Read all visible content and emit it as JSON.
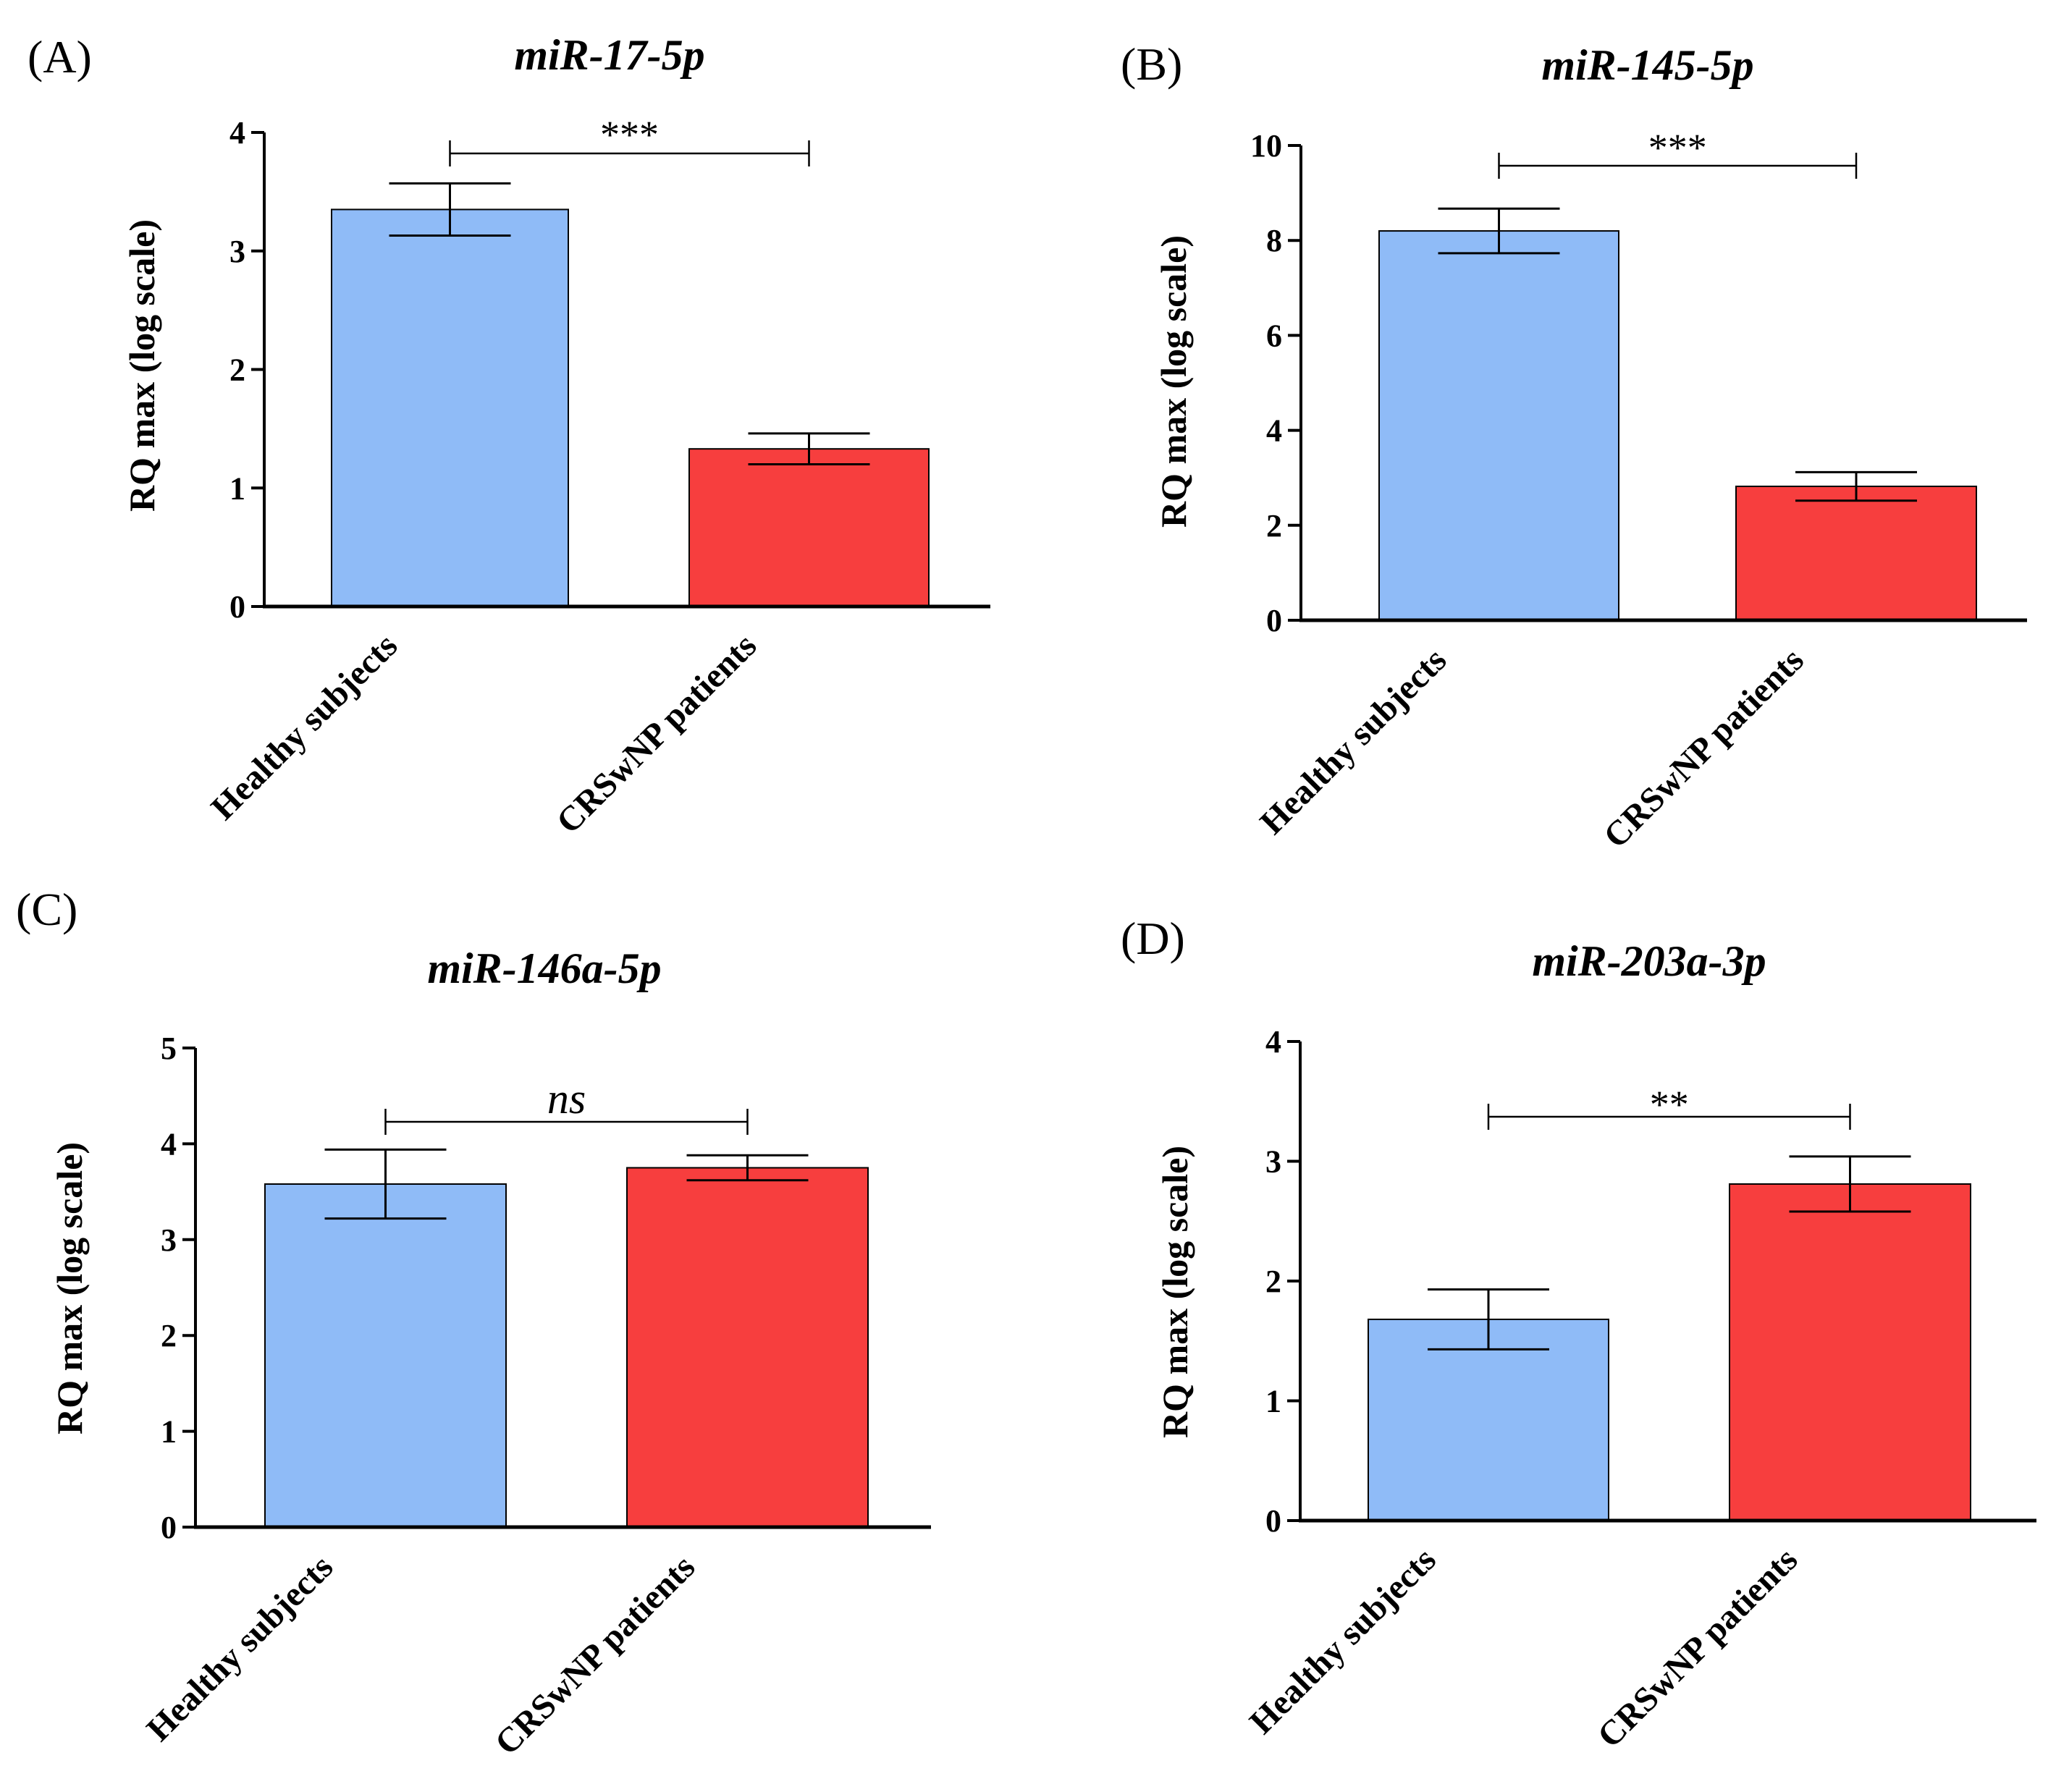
{
  "colors": {
    "healthy": "#8fbbf7",
    "patients": "#f73e3e",
    "axis": "#000000"
  },
  "chart_data": [
    {
      "panel": "(A)",
      "type": "bar",
      "title": "miR-17-5p",
      "ylabel": "RQ max (log scale)",
      "xlabel": "",
      "categories": [
        "Healthy subjects",
        "CRSwNP patients"
      ],
      "values": [
        3.35,
        1.33
      ],
      "errors": [
        0.22,
        0.13
      ],
      "ylim": [
        0,
        4
      ],
      "yticks": [
        0,
        1,
        2,
        3,
        4
      ],
      "significance": "***",
      "grid": false
    },
    {
      "panel": "(B)",
      "type": "bar",
      "title": "miR-145-5p",
      "ylabel": "RQ max (log scale)",
      "xlabel": "",
      "categories": [
        "Healthy subjects",
        "CRSwNP patients"
      ],
      "values": [
        8.2,
        2.82
      ],
      "errors": [
        0.47,
        0.3
      ],
      "ylim": [
        0,
        10
      ],
      "yticks": [
        0,
        2,
        4,
        6,
        8,
        10
      ],
      "significance": "***",
      "grid": false
    },
    {
      "panel": "(C)",
      "type": "bar",
      "title": "miR-146a-5p",
      "ylabel": "RQ max (log scale)",
      "xlabel": "",
      "categories": [
        "Healthy subjects",
        "CRSwNP patients"
      ],
      "values": [
        3.58,
        3.75
      ],
      "errors": [
        0.36,
        0.13
      ],
      "ylim": [
        0,
        5
      ],
      "yticks": [
        0,
        1,
        2,
        3,
        4,
        5
      ],
      "significance": "ns",
      "grid": false
    },
    {
      "panel": "(D)",
      "type": "bar",
      "title": "miR-203a-3p",
      "ylabel": "RQ max (log scale)",
      "xlabel": "",
      "categories": [
        "Healthy subjects",
        "CRSwNP patients"
      ],
      "values": [
        1.68,
        2.81
      ],
      "errors": [
        0.25,
        0.23
      ],
      "ylim": [
        0,
        4
      ],
      "yticks": [
        0,
        1,
        2,
        3,
        4
      ],
      "significance": "**",
      "grid": false
    }
  ]
}
